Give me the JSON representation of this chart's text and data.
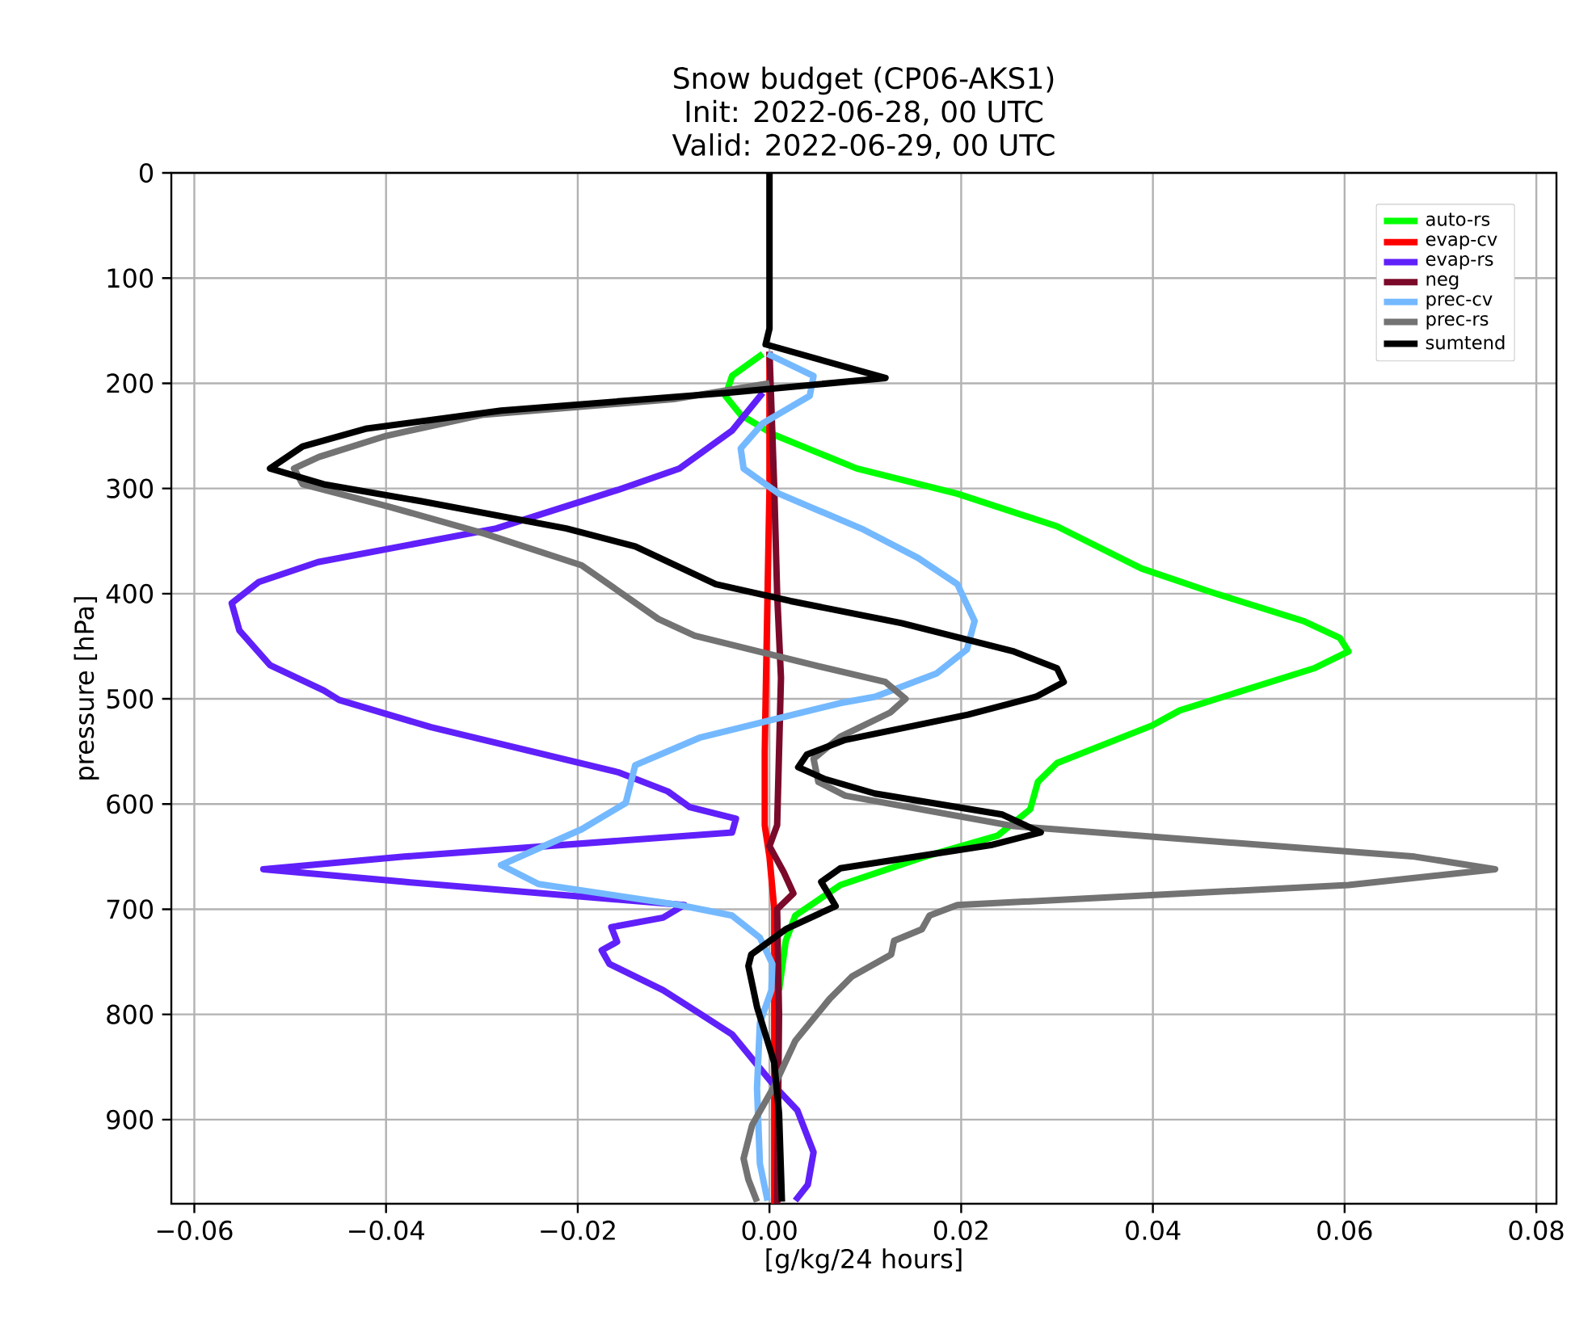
{
  "chart_data": {
    "type": "line",
    "title": "Snow budget (CP06-AKS1)",
    "subtitle": "Init: 2022-06-28, 00 UTC",
    "annotations": [
      "Valid: 2022-06-29, 00 UTC"
    ],
    "xlabel": "[g/kg/24 hours]",
    "ylabel": "pressure [hPa]",
    "xlim": [
      -0.0624,
      0.0821
    ],
    "ylim": [
      980,
      0
    ],
    "xticks": [
      {
        "value": -0.06,
        "label": "−0.06"
      },
      {
        "value": -0.04,
        "label": "−0.04"
      },
      {
        "value": -0.02,
        "label": "−0.02"
      },
      {
        "value": 0,
        "label": "0.00"
      },
      {
        "value": 0.02,
        "label": "0.02"
      },
      {
        "value": 0.04,
        "label": "0.04"
      },
      {
        "value": 0.06,
        "label": "0.06"
      },
      {
        "value": 0.08,
        "label": "0.08"
      }
    ],
    "yticks": [
      0,
      100,
      200,
      300,
      400,
      500,
      600,
      700,
      800,
      900
    ],
    "grid": true,
    "legend": "top right",
    "line_style": "solid",
    "series": [
      {
        "name": "auto-rs",
        "color": "#00ff00",
        "x": [
          -0.0007,
          -0.0039,
          -0.0046,
          -0.003,
          0.0005,
          0.0091,
          0.0196,
          0.03,
          0.0388,
          0.0459,
          0.0557,
          0.0595,
          0.0604,
          0.0568,
          0.0428,
          0.04,
          0.03,
          0.028,
          0.0272,
          0.0238,
          0.0162,
          0.0074,
          0.0027,
          0.0017,
          0.001
        ],
        "values": [
          172,
          193,
          212,
          230,
          249,
          281,
          305,
          336,
          376,
          398,
          426,
          442,
          455,
          471,
          511,
          525,
          561,
          579,
          605,
          630,
          650,
          677,
          706,
          730,
          777
        ]
      },
      {
        "name": "evap-cv",
        "color": "#ff0000",
        "x": [
          0.0,
          0.0,
          -0.0003,
          -0.0005,
          -0.0005,
          0.0,
          0.0005,
          0.0005
        ],
        "values": [
          170,
          300,
          450,
          550,
          620,
          650,
          700,
          980
        ]
      },
      {
        "name": "evap-rs",
        "color": "#6020fa",
        "x": [
          -0.0007,
          -0.0039,
          -0.0094,
          -0.0157,
          -0.0285,
          -0.0471,
          -0.0533,
          -0.0561,
          -0.0553,
          -0.0521,
          -0.0465,
          -0.0449,
          -0.0353,
          -0.0157,
          -0.0106,
          -0.0083,
          -0.0035,
          -0.0039,
          -0.0381,
          -0.0528,
          -0.0381,
          -0.0089,
          -0.0111,
          -0.0165,
          -0.0159,
          -0.0175,
          -0.0167,
          -0.0111,
          -0.0073,
          -0.0039,
          0.0007,
          0.0029,
          0.0046,
          0.004,
          0.0027
        ],
        "values": [
          209,
          245,
          281,
          301,
          338,
          370,
          389,
          409,
          435,
          468,
          492,
          501,
          527,
          570,
          588,
          603,
          614,
          627,
          650,
          662,
          674,
          696,
          708,
          717,
          731,
          739,
          752,
          777,
          799,
          819,
          870,
          891,
          931,
          962,
          977
        ]
      },
      {
        "name": "neg",
        "color": "#7b0a2a",
        "x": [
          0.0,
          0.0005,
          0.0008,
          0.0012,
          0.001,
          0.0008,
          0.0,
          0.0015,
          0.0025,
          0.0008,
          0.001,
          0.0008
        ],
        "values": [
          170,
          300,
          400,
          480,
          550,
          620,
          640,
          665,
          685,
          700,
          800,
          980
        ]
      },
      {
        "name": "prec-cv",
        "color": "#74b9ff",
        "x": [
          -0.0002,
          0.0046,
          0.0042,
          -0.0007,
          -0.003,
          -0.0027,
          0.001,
          0.0098,
          0.0155,
          0.0196,
          0.0214,
          0.0206,
          0.0174,
          0.011,
          0.0074,
          -0.0073,
          -0.014,
          -0.015,
          -0.0196,
          -0.028,
          -0.0241,
          -0.0094,
          -0.0039,
          -0.001,
          0.0003,
          0.0002,
          -0.001,
          -0.0013,
          -0.001,
          -0.0002
        ],
        "values": [
          172,
          193,
          212,
          238,
          262,
          281,
          305,
          339,
          366,
          391,
          426,
          453,
          476,
          498,
          504,
          537,
          563,
          599,
          624,
          658,
          676,
          696,
          706,
          727,
          752,
          777,
          808,
          870,
          942,
          977
        ]
      },
      {
        "name": "prec-rs",
        "color": "#737373",
        "x": [
          0.0,
          -0.01,
          -0.03,
          -0.04,
          -0.047,
          -0.0496,
          -0.0487,
          -0.0398,
          -0.0297,
          -0.0196,
          -0.0116,
          -0.0078,
          0.0051,
          0.0121,
          0.0142,
          0.0126,
          0.0074,
          0.0046,
          0.0051,
          0.0079,
          0.0255,
          0.0673,
          0.0757,
          0.0604,
          0.0196,
          0.0167,
          0.0159,
          0.013,
          0.0127,
          0.0086,
          0.0063,
          0.0027,
          0.0005,
          -0.0018,
          -0.0027,
          -0.0022,
          -0.0013
        ],
        "values": [
          200,
          215,
          230,
          250,
          270,
          281,
          296,
          317,
          343,
          373,
          424,
          440,
          469,
          484,
          500,
          513,
          536,
          557,
          579,
          592,
          621,
          650,
          662,
          677,
          696,
          706,
          719,
          730,
          743,
          764,
          785,
          825,
          868,
          905,
          937,
          957,
          978
        ]
      },
      {
        "name": "sumtend",
        "color": "#000000",
        "x": [
          0.0,
          0.0,
          -0.0004,
          0.0121,
          -0.0044,
          -0.028,
          -0.042,
          -0.0487,
          -0.0521,
          -0.0465,
          -0.0364,
          -0.0212,
          -0.014,
          -0.0056,
          0.0022,
          0.0138,
          0.0255,
          0.03,
          0.0307,
          0.0278,
          0.0207,
          0.0079,
          0.0039,
          0.003,
          0.0057,
          0.011,
          0.0243,
          0.0283,
          0.0231,
          0.0074,
          0.0054,
          0.0069,
          0.0017,
          -0.0019,
          -0.0022,
          -0.0013,
          0.0005,
          0.001,
          0.0013
        ],
        "values": [
          0,
          148,
          163,
          195,
          209,
          226,
          243,
          260,
          281,
          296,
          312,
          338,
          355,
          391,
          407,
          428,
          455,
          471,
          484,
          498,
          515,
          539,
          553,
          565,
          576,
          590,
          610,
          627,
          639,
          661,
          674,
          697,
          719,
          743,
          754,
          793,
          846,
          894,
          978
        ]
      }
    ]
  }
}
